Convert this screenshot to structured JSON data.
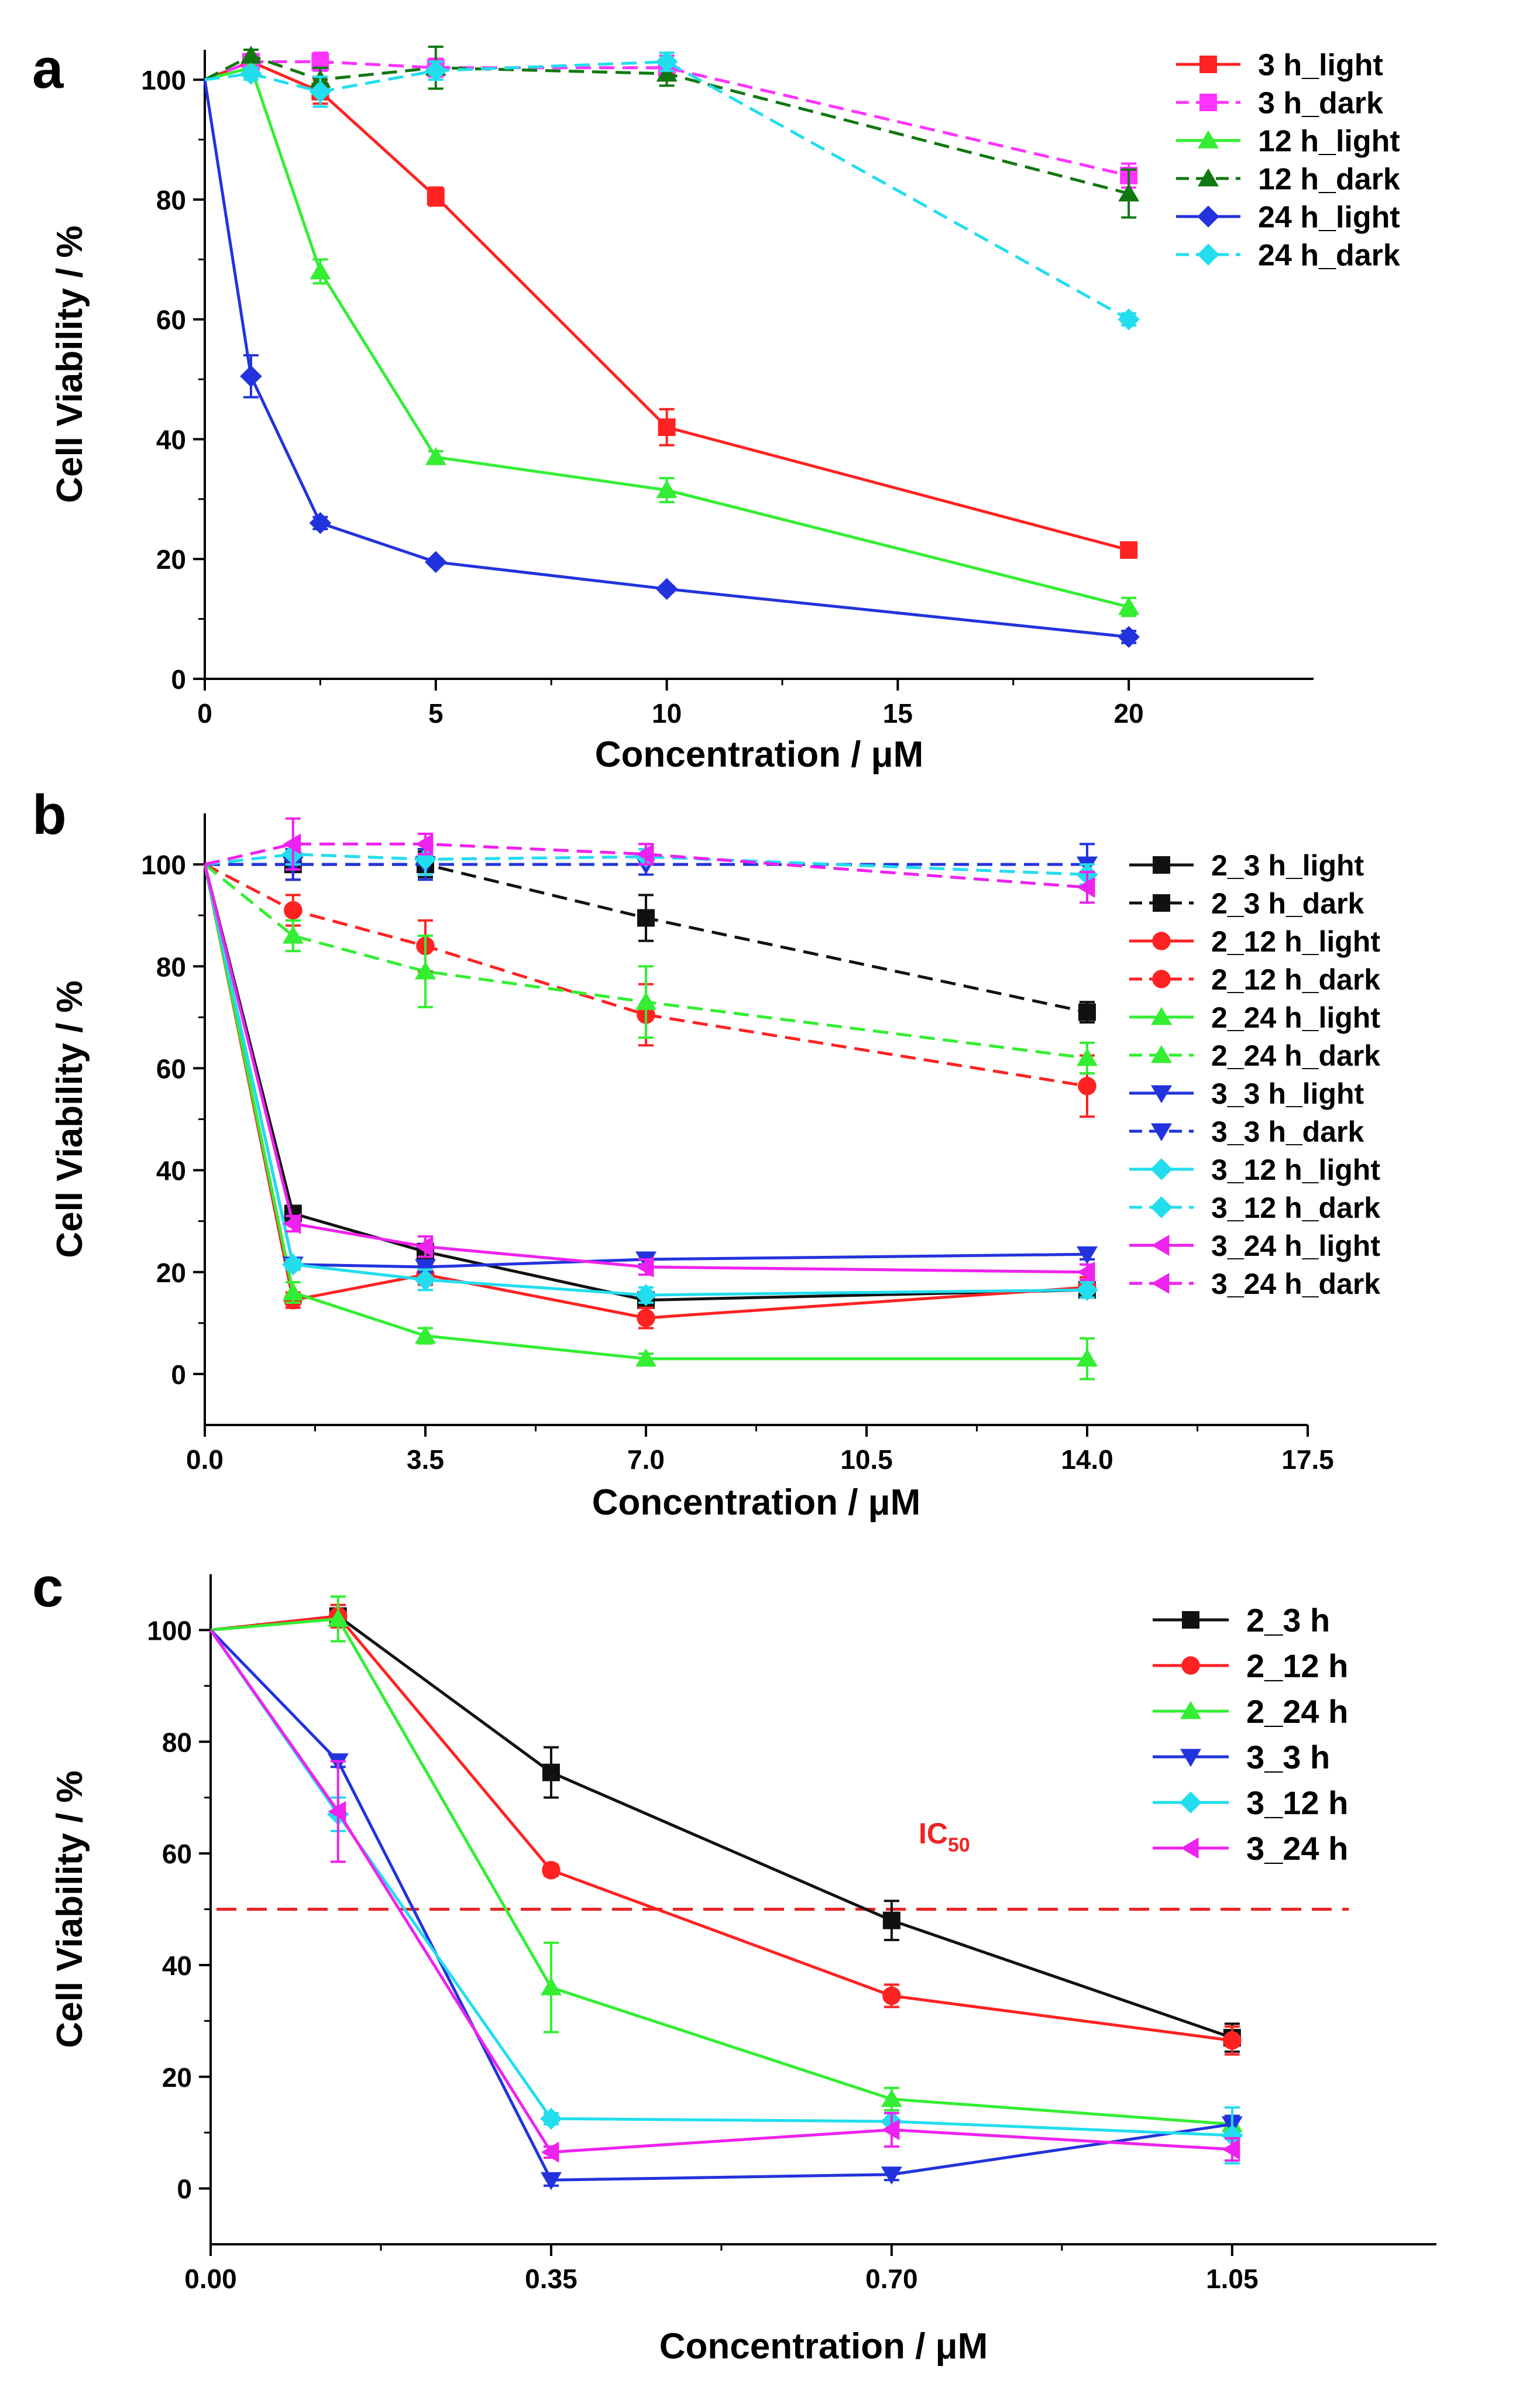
{
  "figure": {
    "background": "#ffffff",
    "axis_color": "#000000"
  },
  "chart_data": [
    {
      "type": "line",
      "panel_label": "a",
      "title": "",
      "xlabel": "Concentration / μM",
      "ylabel": "Cell Viability / %",
      "xlim": [
        0,
        24
      ],
      "ylim": [
        0,
        105
      ],
      "xticks": [
        0,
        5,
        10,
        15,
        20
      ],
      "xtick_labels": [
        "0",
        "5",
        "10",
        "15",
        "20"
      ],
      "yticks": [
        0,
        20,
        40,
        60,
        80,
        100
      ],
      "ytick_labels": [
        "0",
        "20",
        "40",
        "60",
        "80",
        "100"
      ],
      "legend_position": "top-right",
      "x": [
        0,
        1,
        2.5,
        5,
        10,
        20
      ],
      "series": [
        {
          "name": "3 h_light",
          "color": "#ff2222",
          "dash": false,
          "marker": "square",
          "values": [
            100,
            103,
            98,
            80.5,
            42,
            21.5
          ],
          "errors": [
            0,
            1,
            2,
            1.5,
            3,
            1
          ]
        },
        {
          "name": "3 h_dark",
          "color": "#ff33ff",
          "dash": true,
          "marker": "square",
          "values": [
            100,
            103,
            103,
            102,
            102,
            84
          ],
          "errors": [
            0,
            1,
            1.5,
            1.5,
            2,
            2
          ]
        },
        {
          "name": "12 h_light",
          "color": "#33ee33",
          "dash": false,
          "marker": "triangle-up",
          "values": [
            100,
            102,
            68,
            37,
            31.5,
            12
          ],
          "errors": [
            0,
            1.5,
            2,
            1,
            2,
            1.5
          ]
        },
        {
          "name": "12 h_dark",
          "color": "#117711",
          "dash": true,
          "marker": "triangle-up",
          "values": [
            100,
            104,
            100,
            102,
            101,
            81
          ],
          "errors": [
            0,
            1,
            2,
            3.5,
            2,
            4
          ]
        },
        {
          "name": "24 h_light",
          "color": "#2233dd",
          "dash": false,
          "marker": "diamond",
          "values": [
            100,
            50.5,
            26,
            19.5,
            15,
            7
          ],
          "errors": [
            0,
            3.5,
            1,
            0.5,
            0.5,
            1
          ]
        },
        {
          "name": "24 h_dark",
          "color": "#22ddee",
          "dash": true,
          "marker": "diamond",
          "values": [
            100,
            101,
            98,
            101.5,
            103,
            60
          ],
          "errors": [
            0,
            1,
            2.5,
            1.5,
            1.5,
            1
          ]
        }
      ]
    },
    {
      "type": "line",
      "panel_label": "b",
      "title": "",
      "xlabel": "Concentration / μM",
      "ylabel": "Cell Viability / %",
      "xlim": [
        0,
        17.5
      ],
      "ylim": [
        -10,
        110
      ],
      "xticks": [
        0,
        3.5,
        7,
        10.5,
        14,
        17.5
      ],
      "xtick_labels": [
        "0.0",
        "3.5",
        "7.0",
        "10.5",
        "14.0",
        "17.5"
      ],
      "yticks": [
        0,
        20,
        40,
        60,
        80,
        100
      ],
      "ytick_labels": [
        "0",
        "20",
        "40",
        "60",
        "80",
        "100"
      ],
      "legend_position": "right",
      "x": [
        0,
        1.4,
        3.5,
        7,
        14
      ],
      "series": [
        {
          "name": "2_3 h_light",
          "color": "#111111",
          "dash": false,
          "marker": "square",
          "values": [
            100,
            31.5,
            24,
            14.5,
            16.5
          ],
          "errors": [
            0,
            1.5,
            1.5,
            1.5,
            1.5
          ]
        },
        {
          "name": "2_3 h_dark",
          "color": "#111111",
          "dash": true,
          "marker": "square",
          "values": [
            100,
            100,
            100,
            89.5,
            71
          ],
          "errors": [
            0,
            3,
            2.5,
            4.5,
            2
          ]
        },
        {
          "name": "2_12 h_light",
          "color": "#ff2222",
          "dash": false,
          "marker": "circle",
          "values": [
            100,
            14.5,
            19.5,
            11,
            17
          ],
          "errors": [
            0,
            1.5,
            2,
            2,
            2
          ]
        },
        {
          "name": "2_12 h_dark",
          "color": "#ff2222",
          "dash": true,
          "marker": "circle",
          "values": [
            100,
            91,
            84,
            70.5,
            56.5
          ],
          "errors": [
            0,
            3,
            5,
            6,
            6
          ]
        },
        {
          "name": "2_24 h_light",
          "color": "#33ee33",
          "dash": false,
          "marker": "triangle-up",
          "values": [
            100,
            16,
            7.5,
            3,
            3
          ],
          "errors": [
            0,
            2,
            1.5,
            1,
            4
          ]
        },
        {
          "name": "2_24 h_dark",
          "color": "#33ee33",
          "dash": true,
          "marker": "triangle-up",
          "values": [
            100,
            86,
            79,
            73,
            62
          ],
          "errors": [
            0,
            3,
            7,
            7,
            3
          ]
        },
        {
          "name": "3_3 h_light",
          "color": "#2233dd",
          "dash": false,
          "marker": "triangle-down",
          "values": [
            100,
            21.5,
            21,
            22.5,
            23.5
          ],
          "errors": [
            0,
            1,
            1,
            1,
            1
          ]
        },
        {
          "name": "3_3 h_dark",
          "color": "#2233dd",
          "dash": true,
          "marker": "triangle-down",
          "values": [
            100,
            100,
            100,
            100,
            100
          ],
          "errors": [
            0,
            3,
            3,
            2,
            4
          ]
        },
        {
          "name": "3_12 h_light",
          "color": "#22ddee",
          "dash": false,
          "marker": "diamond",
          "values": [
            100,
            21.5,
            18.5,
            15.5,
            16.5
          ],
          "errors": [
            0,
            1,
            2,
            1.5,
            1.5
          ]
        },
        {
          "name": "3_12 h_dark",
          "color": "#22ddee",
          "dash": true,
          "marker": "diamond",
          "values": [
            100,
            102,
            101,
            101.5,
            98
          ],
          "errors": [
            0,
            2,
            3,
            1.5,
            2
          ]
        },
        {
          "name": "3_24 h_light",
          "color": "#ee22ee",
          "dash": false,
          "marker": "triangle-left",
          "values": [
            100,
            29.5,
            25,
            21,
            20
          ],
          "errors": [
            0,
            1.5,
            2,
            1.5,
            1.5
          ]
        },
        {
          "name": "3_24 h_dark",
          "color": "#ee22ee",
          "dash": true,
          "marker": "triangle-left",
          "values": [
            100,
            104,
            104,
            102,
            95.5
          ],
          "errors": [
            0,
            5,
            2,
            2,
            3
          ]
        }
      ]
    },
    {
      "type": "line",
      "panel_label": "c",
      "title": "",
      "xlabel": "Concentration / μM",
      "ylabel": "Cell Viability / %",
      "xlim": [
        0,
        1.26
      ],
      "ylim": [
        -10,
        110
      ],
      "xticks": [
        0,
        0.35,
        0.7,
        1.05
      ],
      "xtick_labels": [
        "0.00",
        "0.35",
        "0.70",
        "1.05"
      ],
      "yticks": [
        0,
        20,
        40,
        60,
        80,
        100
      ],
      "ytick_labels": [
        "0",
        "20",
        "40",
        "60",
        "80",
        "100"
      ],
      "legend_position": "top-right",
      "reference_line": {
        "y": 50,
        "label": "IC",
        "label_sub": "50",
        "color": "#ee2222"
      },
      "x": [
        0,
        0.131,
        0.35,
        0.7,
        1.05
      ],
      "series": [
        {
          "name": "2_3 h",
          "color": "#111111",
          "dash": false,
          "marker": "square",
          "values": [
            100,
            102.5,
            74.5,
            48,
            27
          ],
          "errors": [
            0,
            2,
            4.5,
            3.5,
            2.5
          ]
        },
        {
          "name": "2_12 h",
          "color": "#ff2222",
          "dash": false,
          "marker": "circle",
          "values": [
            100,
            102.5,
            57,
            34.5,
            26.5
          ],
          "errors": [
            0,
            2,
            1,
            2,
            2.5
          ]
        },
        {
          "name": "2_24 h",
          "color": "#33ee33",
          "dash": false,
          "marker": "triangle-up",
          "values": [
            100,
            102,
            36,
            16,
            11.5
          ],
          "errors": [
            0,
            4,
            8,
            2,
            1.5
          ]
        },
        {
          "name": "3_3 h",
          "color": "#2233dd",
          "dash": false,
          "marker": "triangle-down",
          "values": [
            100,
            76.5,
            1.5,
            2.5,
            11.5
          ],
          "errors": [
            0,
            1,
            1,
            1,
            1.5
          ]
        },
        {
          "name": "3_12 h",
          "color": "#22ddee",
          "dash": false,
          "marker": "diamond",
          "values": [
            100,
            67,
            12.5,
            12,
            9.5
          ],
          "errors": [
            0,
            3,
            1,
            1.5,
            5
          ]
        },
        {
          "name": "3_24 h",
          "color": "#ee22ee",
          "dash": false,
          "marker": "triangle-left",
          "values": [
            100,
            67.5,
            6.5,
            10.5,
            7
          ],
          "errors": [
            0,
            9,
            1,
            3,
            2
          ]
        }
      ]
    }
  ]
}
